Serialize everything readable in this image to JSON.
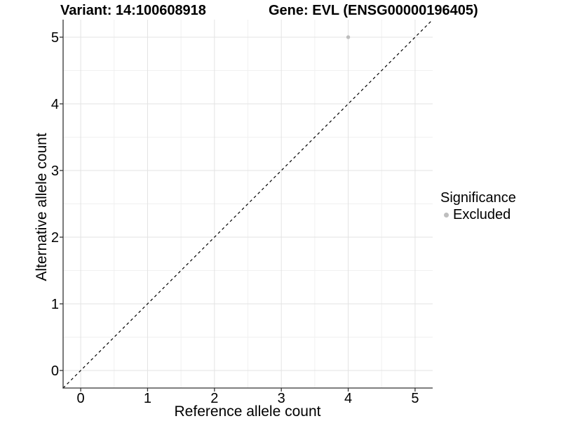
{
  "titles": {
    "left": "Variant: 14:100608918",
    "right": "Gene: EVL (ENSG00000196405)"
  },
  "legend": {
    "title": "Significance",
    "items": [
      {
        "label": "Excluded",
        "color": "#bebebe"
      }
    ]
  },
  "chart_data": {
    "type": "scatter",
    "title": "Variant: 14:100608918",
    "subtitle": "Gene: EVL (ENSG00000196405)",
    "xlabel": "Reference allele count",
    "ylabel": "Alternative allele count",
    "xlim": [
      -0.263,
      5.263
    ],
    "ylim": [
      -0.263,
      5.263
    ],
    "x_ticks": [
      0,
      1,
      2,
      3,
      4,
      5
    ],
    "y_ticks": [
      0,
      1,
      2,
      3,
      4,
      5
    ],
    "grid": {
      "major": true,
      "minor": true
    },
    "series": [
      {
        "name": "Excluded",
        "color": "#bebebe",
        "points": [
          {
            "x": 4,
            "y": 5
          }
        ]
      }
    ],
    "reference_line": {
      "slope": 1,
      "intercept": 0,
      "style": "dashed",
      "color": "#000000"
    },
    "legend_position": "right"
  },
  "colors": {
    "background": "#ffffff",
    "grid_major": "#e3e3e3",
    "grid_minor": "#f0f0f0",
    "axis_line": "#333333",
    "tick_mark": "#333333",
    "tick_text": "#000000",
    "point": "#bebebe"
  }
}
